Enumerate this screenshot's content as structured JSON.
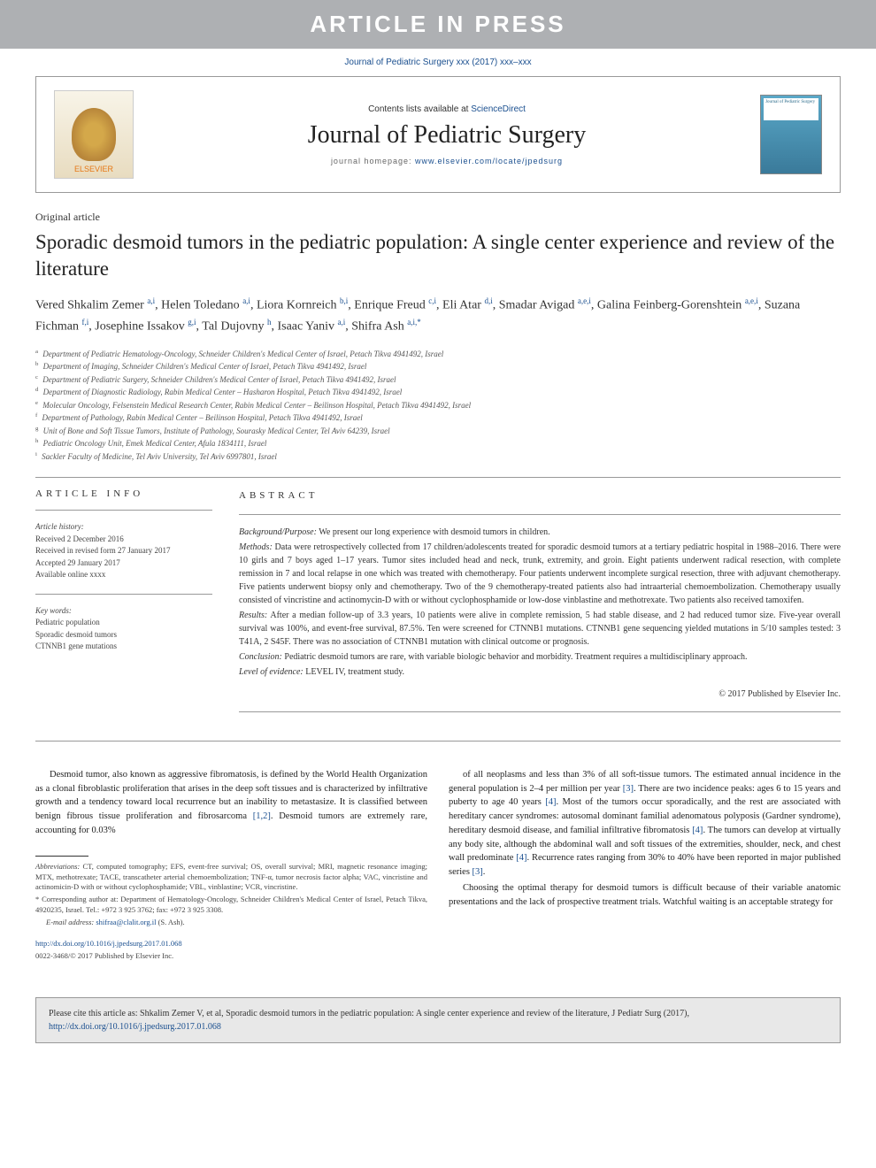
{
  "banner": "ARTICLE IN PRESS",
  "journal_ref": "Journal of Pediatric Surgery xxx (2017) xxx–xxx",
  "header": {
    "contents_prefix": "Contents lists available at ",
    "contents_link": "ScienceDirect",
    "journal_name": "Journal of Pediatric Surgery",
    "homepage_prefix": "journal homepage: ",
    "homepage_link": "www.elsevier.com/locate/jpedsurg",
    "logo_text": "ELSEVIER",
    "cover_text": "Journal of Pediatric Surgery"
  },
  "article_type": "Original article",
  "title": "Sporadic desmoid tumors in the pediatric population: A single center experience and review of the literature",
  "authors_html": "Vered Shkalim Zemer <sup>a,i</sup>, Helen Toledano <sup>a,i</sup>, Liora Kornreich <sup>b,i</sup>, Enrique Freud <sup>c,i</sup>, Eli Atar <sup>d,i</sup>, Smadar Avigad <sup>a,e,i</sup>, Galina Feinberg-Gorenshtein <sup>a,e,i</sup>, Suzana Fichman <sup>f,i</sup>, Josephine Issakov <sup>g,i</sup>, Tal Dujovny <sup>h</sup>, Isaac Yaniv <sup>a,i</sup>, Shifra Ash <sup>a,i,*</sup>",
  "affiliations": [
    {
      "sup": "a",
      "text": "Department of Pediatric Hematology-Oncology, Schneider Children's Medical Center of Israel, Petach Tikva 4941492, Israel"
    },
    {
      "sup": "b",
      "text": "Department of Imaging, Schneider Children's Medical Center of Israel, Petach Tikva 4941492, Israel"
    },
    {
      "sup": "c",
      "text": "Department of Pediatric Surgery, Schneider Children's Medical Center of Israel, Petach Tikva 4941492, Israel"
    },
    {
      "sup": "d",
      "text": "Department of Diagnostic Radiology, Rabin Medical Center – Hasharon Hospital, Petach Tikva 4941492, Israel"
    },
    {
      "sup": "e",
      "text": "Molecular Oncology, Felsenstein Medical Research Center, Rabin Medical Center – Beilinson Hospital, Petach Tikva 4941492, Israel"
    },
    {
      "sup": "f",
      "text": "Department of Pathology, Rabin Medical Center – Beilinson Hospital, Petach Tikva 4941492, Israel"
    },
    {
      "sup": "g",
      "text": "Unit of Bone and Soft Tissue Tumors, Institute of Pathology, Sourasky Medical Center, Tel Aviv 64239, Israel"
    },
    {
      "sup": "h",
      "text": "Pediatric Oncology Unit, Emek Medical Center, Afula 1834111, Israel"
    },
    {
      "sup": "i",
      "text": "Sackler Faculty of Medicine, Tel Aviv University, Tel Aviv 6997801, Israel"
    }
  ],
  "info": {
    "heading": "ARTICLE INFO",
    "history_label": "Article history:",
    "history": [
      "Received 2 December 2016",
      "Received in revised form 27 January 2017",
      "Accepted 29 January 2017",
      "Available online xxxx"
    ],
    "keywords_label": "Key words:",
    "keywords": [
      "Pediatric population",
      "Sporadic desmoid tumors",
      "CTNNB1 gene mutations"
    ]
  },
  "abstract": {
    "heading": "ABSTRACT",
    "background_label": "Background/Purpose:",
    "background": "We present our long experience with desmoid tumors in children.",
    "methods_label": "Methods:",
    "methods": "Data were retrospectively collected from 17 children/adolescents treated for sporadic desmoid tumors at a tertiary pediatric hospital in 1988–2016. There were 10 girls and 7 boys aged 1–17 years. Tumor sites included head and neck, trunk, extremity, and groin. Eight patients underwent radical resection, with complete remission in 7 and local relapse in one which was treated with chemotherapy. Four patients underwent incomplete surgical resection, three with adjuvant chemotherapy. Five patients underwent biopsy only and chemotherapy. Two of the 9 chemotherapy-treated patients also had intraarterial chemoembolization. Chemotherapy usually consisted of vincristine and actinomycin-D with or without cyclophosphamide or low-dose vinblastine and methotrexate. Two patients also received tamoxifen.",
    "results_label": "Results:",
    "results": "After a median follow-up of 3.3 years, 10 patients were alive in complete remission, 5 had stable disease, and 2 had reduced tumor size. Five-year overall survival was 100%, and event-free survival, 87.5%. Ten were screened for CTNNB1 mutations. CTNNB1 gene sequencing yielded mutations in 5/10 samples tested: 3 T41A, 2 S45F. There was no association of CTNNB1 mutation with clinical outcome or prognosis.",
    "conclusion_label": "Conclusion:",
    "conclusion": "Pediatric desmoid tumors are rare, with variable biologic behavior and morbidity. Treatment requires a multidisciplinary approach.",
    "level_label": "Level of evidence:",
    "level": "LEVEL IV, treatment study.",
    "copyright": "© 2017 Published by Elsevier Inc."
  },
  "body": {
    "p1": "Desmoid tumor, also known as aggressive fibromatosis, is defined by the World Health Organization as a clonal fibroblastic proliferation that arises in the deep soft tissues and is characterized by infiltrative growth and a tendency toward local recurrence but an inability to metastasize. It is classified between benign fibrous tissue proliferation and fibrosarcoma [1,2]. Desmoid tumors are extremely rare, accounting for 0.03%",
    "p2": "of all neoplasms and less than 3% of all soft-tissue tumors. The estimated annual incidence in the general population is 2–4 per million per year [3]. There are two incidence peaks: ages 6 to 15 years and puberty to age 40 years [4]. Most of the tumors occur sporadically, and the rest are associated with hereditary cancer syndromes: autosomal dominant familial adenomatous polyposis (Gardner syndrome), hereditary desmoid disease, and familial infiltrative fibromatosis [4]. The tumors can develop at virtually any body site, although the abdominal wall and soft tissues of the extremities, shoulder, neck, and chest wall predominate [4]. Recurrence rates ranging from 30% to 40% have been reported in major published series [3].",
    "p3": "Choosing the optimal therapy for desmoid tumors is difficult because of their variable anatomic presentations and the lack of prospective treatment trials. Watchful waiting is an acceptable strategy for"
  },
  "footnotes": {
    "abbrev_label": "Abbreviations:",
    "abbrev": "CT, computed tomography; EFS, event-free survival; OS, overall survival; MRI, magnetic resonance imaging; MTX, methotrexate; TACE, transcatheter arterial chemoembolization; TNF-α, tumor necrosis factor alpha; VAC, vincristine and actinomicin-D with or without cyclophosphamide; VBL, vinblastine; VCR, vincristine.",
    "corresp": "* Corresponding author at: Department of Hematology-Oncology, Schneider Children's Medical Center of Israel, Petach Tikva, 4920235, Israel. Tel.: +972 3 925 3762; fax: +972 3 925 3308.",
    "email_label": "E-mail address:",
    "email": "shifraa@clalit.org.il",
    "email_name": "(S. Ash).",
    "doi": "http://dx.doi.org/10.1016/j.jpedsurg.2017.01.068",
    "issn": "0022-3468/© 2017 Published by Elsevier Inc."
  },
  "cite_box": {
    "text": "Please cite this article as: Shkalim Zemer V, et al, Sporadic desmoid tumors in the pediatric population: A single center experience and review of the literature, J Pediatr Surg (2017), ",
    "link": "http://dx.doi.org/10.1016/j.jpedsurg.2017.01.068"
  }
}
